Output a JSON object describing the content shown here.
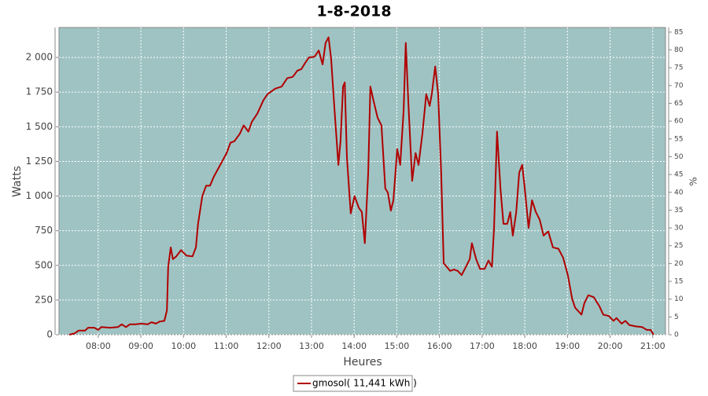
{
  "chart_data": {
    "type": "line",
    "title": "1-8-2018",
    "x_label": "Heures",
    "y_label": "Watts",
    "y2_label": "%",
    "x": [
      7.32,
      7.45,
      7.54,
      7.69,
      7.76,
      7.91,
      8.0,
      8.07,
      8.28,
      8.46,
      8.55,
      8.65,
      8.74,
      8.87,
      9.01,
      9.16,
      9.25,
      9.35,
      9.44,
      9.55,
      9.61,
      9.64,
      9.7,
      9.75,
      9.83,
      9.94,
      10.07,
      10.21,
      10.29,
      10.34,
      10.44,
      10.53,
      10.62,
      10.71,
      10.86,
      11.01,
      11.1,
      11.19,
      11.32,
      11.41,
      11.52,
      11.6,
      11.73,
      11.87,
      11.97,
      12.15,
      12.3,
      12.43,
      12.56,
      12.67,
      12.76,
      12.85,
      12.94,
      13.07,
      13.17,
      13.26,
      13.33,
      13.4,
      13.46,
      13.54,
      13.63,
      13.68,
      13.74,
      13.78,
      13.83,
      13.92,
      14.01,
      14.11,
      14.18,
      14.25,
      14.33,
      14.38,
      14.46,
      14.55,
      14.64,
      14.73,
      14.79,
      14.86,
      14.92,
      15.01,
      15.08,
      15.16,
      15.21,
      15.27,
      15.36,
      15.44,
      15.51,
      15.6,
      15.69,
      15.77,
      15.82,
      15.9,
      15.97,
      16.04,
      16.1,
      16.17,
      16.25,
      16.34,
      16.43,
      16.52,
      16.62,
      16.71,
      16.76,
      16.86,
      16.95,
      17.06,
      17.15,
      17.23,
      17.28,
      17.35,
      17.43,
      17.5,
      17.59,
      17.66,
      17.72,
      17.8,
      17.87,
      17.94,
      18.0,
      18.09,
      18.17,
      18.26,
      18.35,
      18.44,
      18.55,
      18.66,
      18.79,
      18.9,
      19.01,
      19.11,
      19.18,
      19.33,
      19.4,
      19.49,
      19.62,
      19.75,
      19.84,
      19.97,
      20.08,
      20.15,
      20.27,
      20.36,
      20.45,
      20.6,
      20.75,
      20.86,
      20.95,
      21.02
    ],
    "series": [
      {
        "name": "gmosol( 11,441 kWh )",
        "color": "#b00000",
        "values": [
          0,
          10,
          30,
          30,
          50,
          50,
          35,
          55,
          50,
          55,
          75,
          55,
          75,
          75,
          80,
          75,
          90,
          80,
          95,
          100,
          175,
          490,
          630,
          545,
          565,
          610,
          570,
          565,
          630,
          800,
          1000,
          1075,
          1075,
          1140,
          1225,
          1310,
          1385,
          1395,
          1450,
          1510,
          1465,
          1535,
          1595,
          1690,
          1735,
          1775,
          1790,
          1850,
          1860,
          1905,
          1915,
          1960,
          2000,
          2005,
          2050,
          1950,
          2105,
          2145,
          1990,
          1620,
          1225,
          1395,
          1790,
          1820,
          1280,
          875,
          1000,
          915,
          885,
          660,
          1170,
          1790,
          1680,
          1565,
          1510,
          1055,
          1025,
          895,
          970,
          1340,
          1225,
          1620,
          2105,
          1680,
          1110,
          1310,
          1225,
          1450,
          1735,
          1650,
          1735,
          1935,
          1735,
          1170,
          515,
          490,
          460,
          470,
          460,
          430,
          490,
          545,
          660,
          545,
          475,
          475,
          535,
          490,
          770,
          1465,
          1055,
          800,
          800,
          885,
          715,
          885,
          1170,
          1225,
          1055,
          770,
          970,
          885,
          830,
          715,
          745,
          630,
          620,
          555,
          430,
          260,
          195,
          145,
          230,
          285,
          270,
          205,
          145,
          135,
          100,
          120,
          80,
          100,
          70,
          60,
          55,
          35,
          35,
          0
        ]
      }
    ],
    "xlim": [
      7.08,
      21.3
    ],
    "xticks": [
      {
        "value": 8,
        "label": "08:00"
      },
      {
        "value": 9,
        "label": "09:00"
      },
      {
        "value": 10,
        "label": "10:00"
      },
      {
        "value": 11,
        "label": "11:00"
      },
      {
        "value": 12,
        "label": "12:00"
      },
      {
        "value": 13,
        "label": "13:00"
      },
      {
        "value": 14,
        "label": "14:00"
      },
      {
        "value": 15,
        "label": "15:00"
      },
      {
        "value": 16,
        "label": "16:00"
      },
      {
        "value": 17,
        "label": "17:00"
      },
      {
        "value": 18,
        "label": "18:00"
      },
      {
        "value": 19,
        "label": "19:00"
      },
      {
        "value": 20,
        "label": "20:00"
      },
      {
        "value": 21,
        "label": "21:00"
      }
    ],
    "ylim": [
      0,
      2216
    ],
    "yticks": [
      0,
      250,
      500,
      750,
      {
        "value": 1000,
        "label": "1 000"
      },
      {
        "value": 1250,
        "label": "1 250"
      },
      {
        "value": 1500,
        "label": "1 500"
      },
      {
        "value": 1750,
        "label": "1 750"
      },
      {
        "value": 2000,
        "label": "2 000"
      }
    ],
    "y2lim": [
      0,
      86.3
    ],
    "y2ticks": [
      0,
      5,
      10,
      15,
      20,
      25,
      30,
      35,
      40,
      45,
      50,
      55,
      60,
      65,
      70,
      75,
      80,
      85
    ],
    "grid": true,
    "plot_background": "#9fc3c3",
    "legend": "bottom"
  }
}
